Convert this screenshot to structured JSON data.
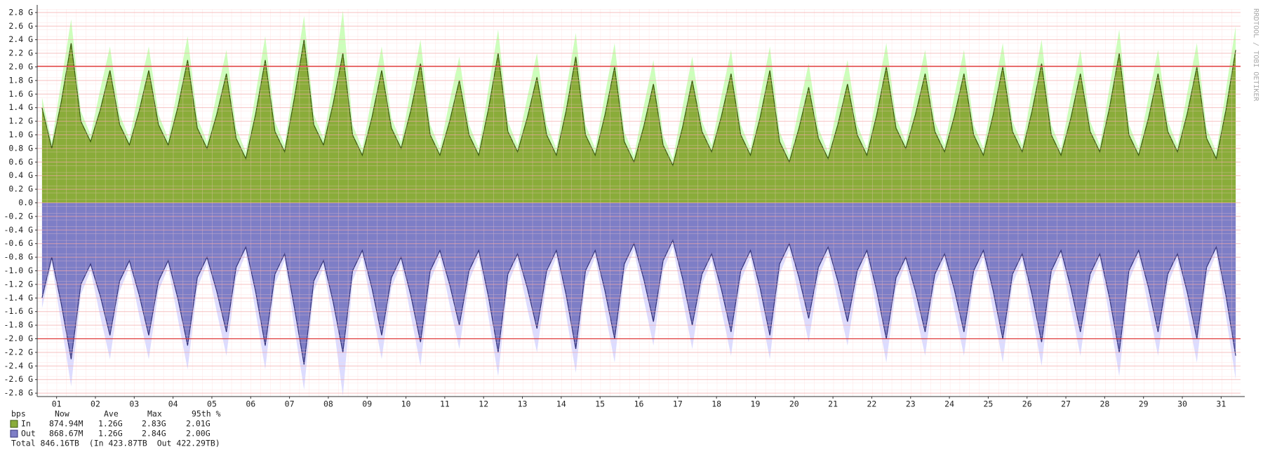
{
  "chart_data": {
    "type": "area",
    "watermark": "RRDTOOL / TOBI OETIKER",
    "ylim": [
      -2.85,
      2.85
    ],
    "yticks": [
      {
        "value": 2.8,
        "label": "2.8 G"
      },
      {
        "value": 2.6,
        "label": "2.6 G"
      },
      {
        "value": 2.4,
        "label": "2.4 G"
      },
      {
        "value": 2.2,
        "label": "2.2 G"
      },
      {
        "value": 2.0,
        "label": "2.0 G"
      },
      {
        "value": 1.8,
        "label": "1.8 G"
      },
      {
        "value": 1.6,
        "label": "1.6 G"
      },
      {
        "value": 1.4,
        "label": "1.4 G"
      },
      {
        "value": 1.2,
        "label": "1.2 G"
      },
      {
        "value": 1.0,
        "label": "1.0 G"
      },
      {
        "value": 0.8,
        "label": "0.8 G"
      },
      {
        "value": 0.6,
        "label": "0.6 G"
      },
      {
        "value": 0.4,
        "label": "0.4 G"
      },
      {
        "value": 0.2,
        "label": "0.2 G"
      },
      {
        "value": 0,
        "label": "0.0"
      },
      {
        "value": -0.2,
        "label": "-0.2 G"
      },
      {
        "value": -0.4,
        "label": "-0.4 G"
      },
      {
        "value": -0.6,
        "label": "-0.6 G"
      },
      {
        "value": -0.8,
        "label": "-0.8 G"
      },
      {
        "value": -1.0,
        "label": "-1.0 G"
      },
      {
        "value": -1.2,
        "label": "-1.2 G"
      },
      {
        "value": -1.4,
        "label": "-1.4 G"
      },
      {
        "value": -1.6,
        "label": "-1.6 G"
      },
      {
        "value": -1.8,
        "label": "-1.8 G"
      },
      {
        "value": -2.0,
        "label": "-2.0 G"
      },
      {
        "value": -2.2,
        "label": "-2.2 G"
      },
      {
        "value": -2.4,
        "label": "-2.4 G"
      },
      {
        "value": -2.6,
        "label": "-2.6 G"
      },
      {
        "value": -2.8,
        "label": "-2.8 G"
      }
    ],
    "xlim": [
      0,
      31
    ],
    "xticks": [
      {
        "value": 0.5,
        "label": "01"
      },
      {
        "value": 1.5,
        "label": "02"
      },
      {
        "value": 2.5,
        "label": "03"
      },
      {
        "value": 3.5,
        "label": "04"
      },
      {
        "value": 4.5,
        "label": "05"
      },
      {
        "value": 5.5,
        "label": "06"
      },
      {
        "value": 6.5,
        "label": "07"
      },
      {
        "value": 7.5,
        "label": "08"
      },
      {
        "value": 8.5,
        "label": "09"
      },
      {
        "value": 9.5,
        "label": "10"
      },
      {
        "value": 10.5,
        "label": "11"
      },
      {
        "value": 11.5,
        "label": "12"
      },
      {
        "value": 12.5,
        "label": "13"
      },
      {
        "value": 13.5,
        "label": "14"
      },
      {
        "value": 14.5,
        "label": "15"
      },
      {
        "value": 15.5,
        "label": "16"
      },
      {
        "value": 16.5,
        "label": "17"
      },
      {
        "value": 17.5,
        "label": "18"
      },
      {
        "value": 18.5,
        "label": "19"
      },
      {
        "value": 19.5,
        "label": "20"
      },
      {
        "value": 20.5,
        "label": "21"
      },
      {
        "value": 21.5,
        "label": "22"
      },
      {
        "value": 22.5,
        "label": "23"
      },
      {
        "value": 23.5,
        "label": "24"
      },
      {
        "value": 24.5,
        "label": "25"
      },
      {
        "value": 25.5,
        "label": "26"
      },
      {
        "value": 26.5,
        "label": "27"
      },
      {
        "value": 27.5,
        "label": "28"
      },
      {
        "value": 28.5,
        "label": "29"
      },
      {
        "value": 29.5,
        "label": "30"
      },
      {
        "value": 30.5,
        "label": "31"
      }
    ],
    "x": [
      0.125,
      0.375,
      0.625,
      0.875,
      1.125,
      1.375,
      1.625,
      1.875,
      2.125,
      2.375,
      2.625,
      2.875,
      3.125,
      3.375,
      3.625,
      3.875,
      4.125,
      4.375,
      4.625,
      4.875,
      5.125,
      5.375,
      5.625,
      5.875,
      6.125,
      6.375,
      6.625,
      6.875,
      7.125,
      7.375,
      7.625,
      7.875,
      8.125,
      8.375,
      8.625,
      8.875,
      9.125,
      9.375,
      9.625,
      9.875,
      10.125,
      10.375,
      10.625,
      10.875,
      11.125,
      11.375,
      11.625,
      11.875,
      12.125,
      12.375,
      12.625,
      12.875,
      13.125,
      13.375,
      13.625,
      13.875,
      14.125,
      14.375,
      14.625,
      14.875,
      15.125,
      15.375,
      15.625,
      15.875,
      16.125,
      16.375,
      16.625,
      16.875,
      17.125,
      17.375,
      17.625,
      17.875,
      18.125,
      18.375,
      18.625,
      18.875,
      19.125,
      19.375,
      19.625,
      19.875,
      20.125,
      20.375,
      20.625,
      20.875,
      21.125,
      21.375,
      21.625,
      21.875,
      22.125,
      22.375,
      22.625,
      22.875,
      23.125,
      23.375,
      23.625,
      23.875,
      24.125,
      24.375,
      24.625,
      24.875,
      25.125,
      25.375,
      25.625,
      25.875,
      26.125,
      26.375,
      26.625,
      26.875,
      27.125,
      27.375,
      27.625,
      27.875,
      28.125,
      28.375,
      28.625,
      28.875,
      29.125,
      29.375,
      29.625,
      29.875,
      30.125,
      30.375,
      30.625,
      30.875
    ],
    "envelopes": [
      {
        "color": "#ccffbb",
        "values": [
          1.55,
          0.9,
          1.8,
          2.7,
          1.35,
          1.0,
          1.67,
          2.3,
          1.3,
          0.95,
          1.65,
          2.3,
          1.3,
          0.95,
          1.71,
          2.45,
          1.25,
          0.9,
          1.6,
          2.25,
          1.1,
          0.75,
          1.6,
          2.45,
          1.2,
          0.85,
          1.84,
          2.75,
          1.3,
          0.95,
          1.76,
          2.83,
          1.15,
          0.8,
          1.56,
          2.3,
          1.25,
          0.9,
          1.66,
          2.4,
          1.15,
          0.8,
          1.5,
          2.15,
          1.15,
          0.8,
          1.68,
          2.55,
          1.2,
          0.85,
          1.55,
          2.2,
          1.15,
          0.8,
          1.65,
          2.5,
          1.15,
          0.8,
          1.59,
          2.35,
          1.05,
          0.7,
          1.42,
          2.1,
          1.0,
          0.65,
          1.41,
          2.15,
          1.2,
          0.85,
          1.57,
          2.25,
          1.15,
          0.8,
          1.56,
          2.3,
          1.05,
          0.7,
          1.4,
          2.05,
          1.1,
          0.75,
          1.45,
          2.1,
          1.15,
          0.8,
          1.59,
          2.35,
          1.25,
          0.9,
          1.6,
          2.25,
          1.2,
          0.85,
          1.57,
          2.25,
          1.15,
          0.8,
          1.59,
          2.35,
          1.2,
          0.85,
          1.64,
          2.4,
          1.15,
          0.8,
          1.54,
          2.25,
          1.2,
          0.85,
          1.7,
          2.55,
          1.15,
          0.8,
          1.54,
          2.25,
          1.2,
          0.85,
          1.61,
          2.35,
          1.1,
          0.75,
          1.67,
          2.6
        ]
      },
      {
        "color": "#dcdcff",
        "values": [
          -1.55,
          -0.9,
          -1.8,
          -2.7,
          -1.35,
          -1.0,
          -1.67,
          -2.3,
          -1.3,
          -0.95,
          -1.65,
          -2.3,
          -1.3,
          -0.95,
          -1.71,
          -2.45,
          -1.25,
          -0.9,
          -1.6,
          -2.25,
          -1.1,
          -0.75,
          -1.6,
          -2.45,
          -1.2,
          -0.85,
          -1.84,
          -2.75,
          -1.3,
          -0.95,
          -1.76,
          -2.84,
          -1.15,
          -0.8,
          -1.56,
          -2.3,
          -1.25,
          -0.9,
          -1.66,
          -2.4,
          -1.15,
          -0.8,
          -1.5,
          -2.15,
          -1.15,
          -0.8,
          -1.68,
          -2.55,
          -1.2,
          -0.85,
          -1.55,
          -2.2,
          -1.15,
          -0.8,
          -1.65,
          -2.5,
          -1.15,
          -0.8,
          -1.59,
          -2.35,
          -1.05,
          -0.7,
          -1.42,
          -2.1,
          -1.0,
          -0.65,
          -1.41,
          -2.15,
          -1.2,
          -0.85,
          -1.57,
          -2.25,
          -1.15,
          -0.8,
          -1.56,
          -2.3,
          -1.05,
          -0.7,
          -1.4,
          -2.05,
          -1.1,
          -0.75,
          -1.45,
          -2.1,
          -1.15,
          -0.8,
          -1.59,
          -2.35,
          -1.25,
          -0.9,
          -1.6,
          -2.25,
          -1.2,
          -0.85,
          -1.57,
          -2.25,
          -1.15,
          -0.8,
          -1.59,
          -2.35,
          -1.2,
          -0.85,
          -1.64,
          -2.4,
          -1.15,
          -0.8,
          -1.54,
          -2.25,
          -1.2,
          -0.85,
          -1.7,
          -2.55,
          -1.15,
          -0.8,
          -1.54,
          -2.25,
          -1.2,
          -0.85,
          -1.61,
          -2.35,
          -1.1,
          -0.75,
          -1.67,
          -2.6
        ]
      }
    ],
    "series": [
      {
        "name": "In",
        "color": "#8aac3a",
        "line_color": "#3c5a10",
        "values": [
          1.4,
          0.8,
          1.5,
          2.35,
          1.2,
          0.9,
          1.37,
          1.95,
          1.15,
          0.85,
          1.35,
          1.95,
          1.15,
          0.85,
          1.41,
          2.1,
          1.1,
          0.8,
          1.3,
          1.9,
          0.95,
          0.65,
          1.3,
          2.1,
          1.05,
          0.75,
          1.54,
          2.4,
          1.15,
          0.85,
          1.46,
          2.2,
          1.0,
          0.7,
          1.26,
          1.95,
          1.1,
          0.8,
          1.36,
          2.05,
          1.0,
          0.7,
          1.2,
          1.8,
          1.0,
          0.7,
          1.38,
          2.2,
          1.05,
          0.75,
          1.25,
          1.85,
          1.0,
          0.7,
          1.35,
          2.15,
          1.0,
          0.7,
          1.29,
          2.0,
          0.9,
          0.6,
          1.12,
          1.75,
          0.85,
          0.55,
          1.11,
          1.8,
          1.05,
          0.75,
          1.27,
          1.9,
          1.0,
          0.7,
          1.26,
          1.95,
          0.9,
          0.6,
          1.1,
          1.7,
          0.95,
          0.65,
          1.15,
          1.75,
          1.0,
          0.7,
          1.29,
          2.0,
          1.1,
          0.8,
          1.3,
          1.9,
          1.05,
          0.75,
          1.27,
          1.9,
          1.0,
          0.7,
          1.29,
          2.0,
          1.05,
          0.75,
          1.34,
          2.05,
          1.0,
          0.7,
          1.24,
          1.9,
          1.05,
          0.75,
          1.4,
          2.2,
          1.0,
          0.7,
          1.24,
          1.9,
          1.05,
          0.75,
          1.31,
          2.0,
          0.95,
          0.65,
          1.37,
          2.25
        ],
        "stats": [
          "874.94M",
          "1.26G",
          "2.83G",
          "2.01G"
        ]
      },
      {
        "name": "Out",
        "color": "#7e7ec6",
        "line_color": "#33337a",
        "values": [
          -1.4,
          -0.8,
          -1.5,
          -2.3,
          -1.2,
          -0.9,
          -1.37,
          -1.95,
          -1.15,
          -0.85,
          -1.35,
          -1.95,
          -1.15,
          -0.85,
          -1.41,
          -2.1,
          -1.1,
          -0.8,
          -1.3,
          -1.9,
          -0.95,
          -0.65,
          -1.3,
          -2.1,
          -1.05,
          -0.75,
          -1.54,
          -2.38,
          -1.15,
          -0.85,
          -1.46,
          -2.2,
          -1.0,
          -0.7,
          -1.26,
          -1.95,
          -1.1,
          -0.8,
          -1.36,
          -2.05,
          -1.0,
          -0.7,
          -1.2,
          -1.8,
          -1.0,
          -0.7,
          -1.38,
          -2.2,
          -1.05,
          -0.75,
          -1.25,
          -1.85,
          -1.0,
          -0.7,
          -1.35,
          -2.15,
          -1.0,
          -0.7,
          -1.29,
          -2.0,
          -0.9,
          -0.6,
          -1.12,
          -1.75,
          -0.85,
          -0.55,
          -1.11,
          -1.8,
          -1.05,
          -0.75,
          -1.27,
          -1.9,
          -1.0,
          -0.7,
          -1.26,
          -1.95,
          -0.9,
          -0.6,
          -1.1,
          -1.7,
          -0.95,
          -0.65,
          -1.15,
          -1.75,
          -1.0,
          -0.7,
          -1.29,
          -2.0,
          -1.1,
          -0.8,
          -1.3,
          -1.9,
          -1.05,
          -0.75,
          -1.27,
          -1.9,
          -1.0,
          -0.7,
          -1.29,
          -2.0,
          -1.05,
          -0.75,
          -1.34,
          -2.05,
          -1.0,
          -0.7,
          -1.24,
          -1.9,
          -1.05,
          -0.75,
          -1.4,
          -2.2,
          -1.0,
          -0.7,
          -1.24,
          -1.9,
          -1.05,
          -0.75,
          -1.31,
          -2.0,
          -0.95,
          -0.65,
          -1.37,
          -2.25
        ],
        "stats": [
          "868.67M",
          "1.26G",
          "2.84G",
          "2.00G"
        ]
      }
    ],
    "percentile_lines": [
      {
        "value": 2.01,
        "color": "#e03c3c"
      },
      {
        "value": -2.0,
        "color": "#e03c3c"
      }
    ],
    "grid": true,
    "legend_header": [
      "bps",
      "Now",
      "Ave",
      "Max",
      "95th %"
    ],
    "total": "Total 846.16TB  (In 423.87TB  Out 422.29TB)"
  }
}
